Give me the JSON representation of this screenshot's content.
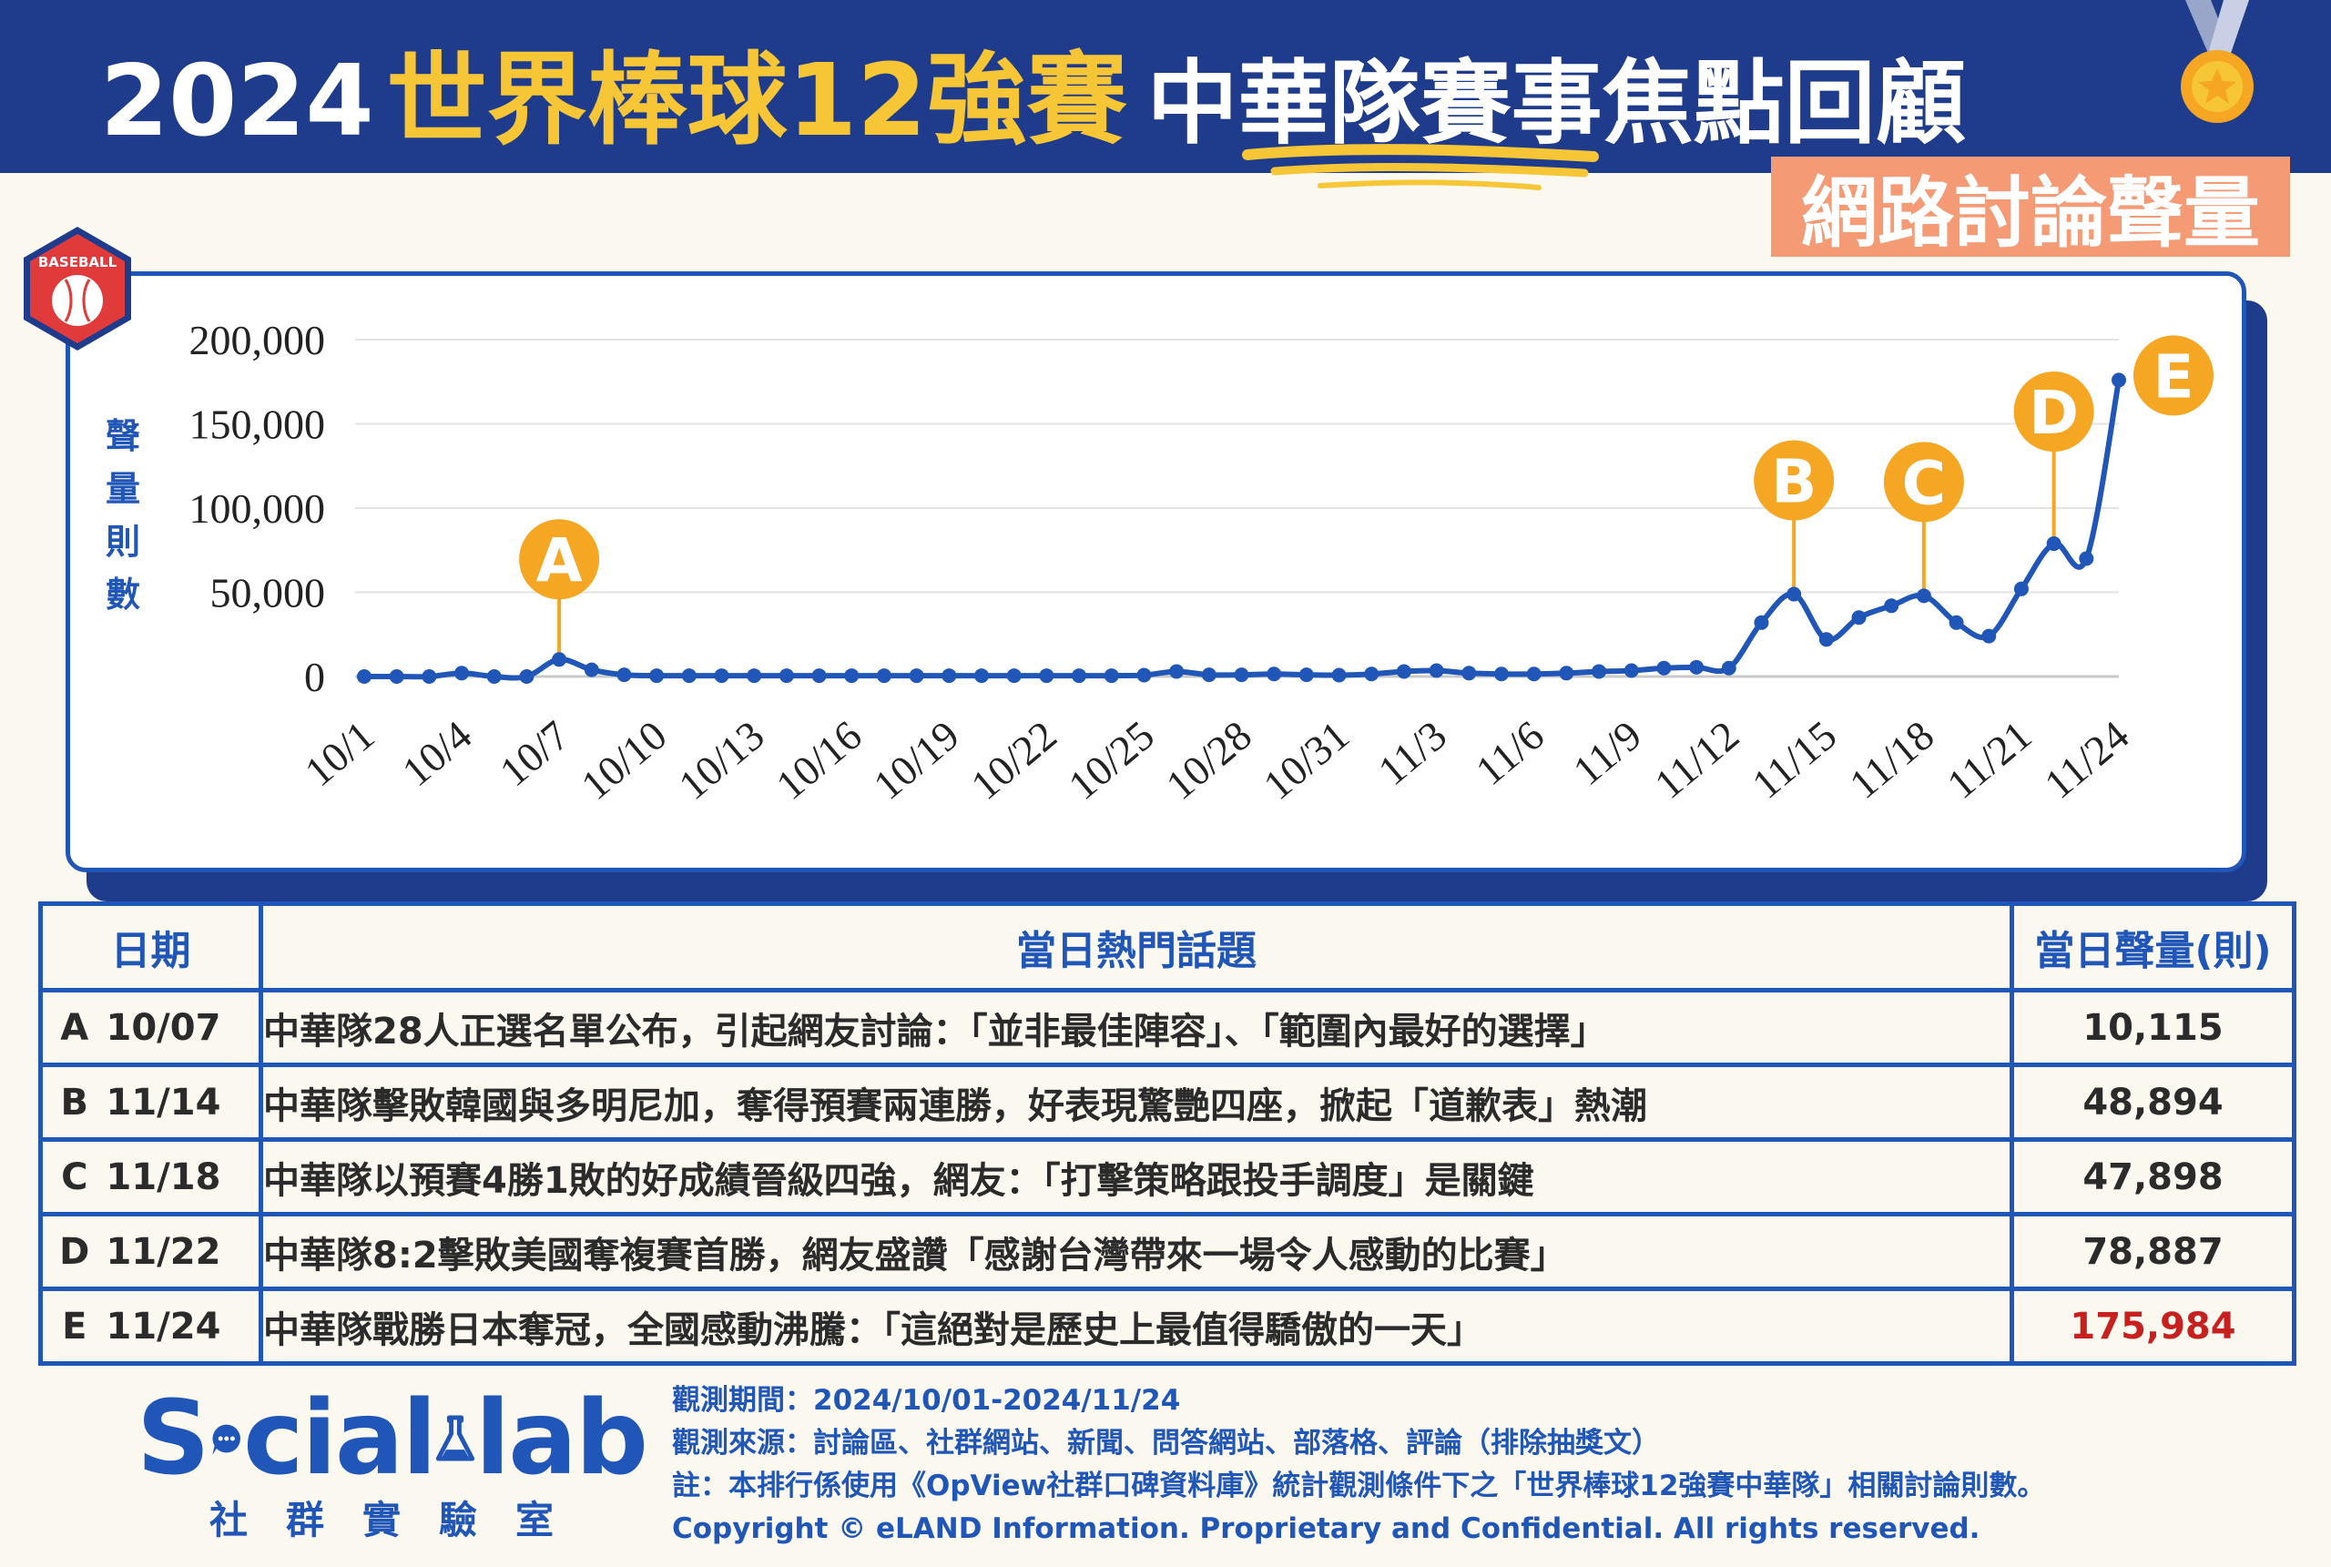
{
  "header": {
    "year": "2024",
    "event": "世界棒球12強賽",
    "team": "中華隊賽事焦點回顧",
    "subtitle": "網路討論聲量"
  },
  "badge": {
    "text": "BASEBALL"
  },
  "colors": {
    "navy": "#1f3c8c",
    "blue": "#1f56b8",
    "gold": "#f6c637",
    "orange": "#f5a623",
    "salmon": "#f49a74",
    "red": "#c8201e"
  },
  "chart_data": {
    "type": "line",
    "ylabel": "聲量則數",
    "ylim": [
      0,
      200000
    ],
    "yticks": [
      "200,000",
      "150,000",
      "100,000",
      "50,000",
      "0"
    ],
    "ytick_values": [
      200000,
      150000,
      100000,
      50000,
      0
    ],
    "grid": true,
    "x": [
      "10/1",
      "10/2",
      "10/3",
      "10/4",
      "10/5",
      "10/6",
      "10/7",
      "10/8",
      "10/9",
      "10/10",
      "10/11",
      "10/12",
      "10/13",
      "10/14",
      "10/15",
      "10/16",
      "10/17",
      "10/18",
      "10/19",
      "10/20",
      "10/21",
      "10/22",
      "10/23",
      "10/24",
      "10/25",
      "10/26",
      "10/27",
      "10/28",
      "10/29",
      "10/30",
      "10/31",
      "11/1",
      "11/2",
      "11/3",
      "11/4",
      "11/5",
      "11/6",
      "11/7",
      "11/8",
      "11/9",
      "11/10",
      "11/11",
      "11/12",
      "11/13",
      "11/14",
      "11/15",
      "11/16",
      "11/17",
      "11/18",
      "11/19",
      "11/20",
      "11/21",
      "11/22",
      "11/23",
      "11/24"
    ],
    "xtick_labels": [
      "10/1",
      "10/4",
      "10/7",
      "10/10",
      "10/13",
      "10/16",
      "10/19",
      "10/22",
      "10/25",
      "10/28",
      "10/31",
      "11/3",
      "11/6",
      "11/9",
      "11/12",
      "11/15",
      "11/18",
      "11/21",
      "11/24"
    ],
    "values": [
      0,
      0,
      0,
      2000,
      0,
      0,
      10115,
      4000,
      1000,
      500,
      500,
      500,
      500,
      500,
      500,
      500,
      500,
      500,
      500,
      500,
      500,
      500,
      500,
      500,
      800,
      3000,
      1000,
      1000,
      1500,
      1000,
      800,
      1500,
      3000,
      3500,
      2000,
      1500,
      1500,
      2000,
      3000,
      3500,
      5000,
      5500,
      5000,
      32000,
      48894,
      22000,
      35000,
      42000,
      47898,
      32000,
      24000,
      52000,
      78887,
      70000,
      175984
    ],
    "annotations": [
      {
        "label": "A",
        "x": "10/7",
        "value": 10115
      },
      {
        "label": "B",
        "x": "11/14",
        "value": 48894
      },
      {
        "label": "C",
        "x": "11/18",
        "value": 47898
      },
      {
        "label": "D",
        "x": "11/22",
        "value": 78887
      },
      {
        "label": "E",
        "x": "11/24",
        "value": 175984
      }
    ]
  },
  "table": {
    "headers": {
      "date": "日期",
      "topic": "當日熱門話題",
      "volume": "當日聲量(則)"
    },
    "rows": [
      {
        "letter": "A",
        "date": "10/07",
        "topic": "中華隊28人正選名單公布，引起網友討論：「並非最佳陣容」、「範圍內最好的選擇」",
        "volume": "10,115"
      },
      {
        "letter": "B",
        "date": "11/14",
        "topic": "中華隊擊敗韓國與多明尼加，奪得預賽兩連勝，好表現驚艷四座，掀起「道歉表」熱潮",
        "volume": "48,894"
      },
      {
        "letter": "C",
        "date": "11/18",
        "topic": "中華隊以預賽4勝1敗的好成績晉級四強，網友：「打擊策略跟投手調度」是關鍵",
        "volume": "47,898"
      },
      {
        "letter": "D",
        "date": "11/22",
        "topic": "中華隊8:2擊敗美國奪複賽首勝，網友盛讚「感謝台灣帶來一場令人感動的比賽」",
        "volume": "78,887"
      },
      {
        "letter": "E",
        "date": "11/24",
        "topic": "中華隊戰勝日本奪冠，全國感動沸騰：「這絕對是歷史上最值得驕傲的一天」",
        "volume": "175,984"
      }
    ]
  },
  "footer": {
    "logo_left": "S",
    "logo_mid": "cial",
    "logo_right": "lab",
    "logo_sub": "社群實驗室",
    "period": "觀測期間：2024/10/01-2024/11/24",
    "sources": "觀測來源：討論區、社群網站、新聞、問答網站、部落格、評論（排除抽獎文）",
    "note": "註：本排行係使用《OpView社群口碑資料庫》統計觀測條件下之「世界棒球12強賽中華隊」相關討論則數。",
    "copyright": "Copyright © eLAND Information. Proprietary and Confidential. All rights reserved."
  }
}
